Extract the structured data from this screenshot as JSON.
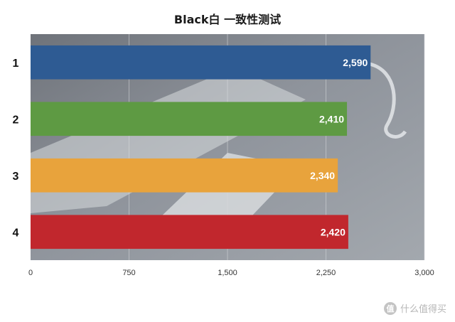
{
  "chart_data": {
    "type": "bar",
    "orientation": "horizontal",
    "title": "Black白 一致性测试",
    "categories": [
      "1",
      "2",
      "3",
      "4"
    ],
    "values": [
      2590,
      2410,
      2340,
      2420
    ],
    "value_labels": [
      "2,590",
      "2,410",
      "2,340",
      "2,420"
    ],
    "bar_colors": [
      "#2e5b93",
      "#5e9a43",
      "#e8a33c",
      "#c1272d"
    ],
    "xlim": [
      0,
      3000
    ],
    "x_ticks": [
      0,
      750,
      1500,
      2250,
      3000
    ],
    "x_tick_labels": [
      "0",
      "750",
      "1,500",
      "2,250",
      "3,000"
    ],
    "grid": true,
    "xlabel": "",
    "ylabel": ""
  },
  "watermark": {
    "badge": "值",
    "text": "什么值得买"
  }
}
